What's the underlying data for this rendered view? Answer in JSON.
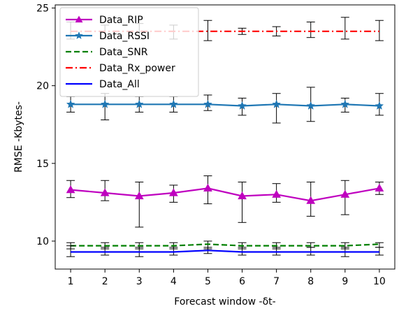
{
  "chart_data": {
    "type": "line",
    "xlabel": "Forecast window -δt-",
    "ylabel": "RMSE -Kbytes-",
    "xlim": [
      0.55,
      10.45
    ],
    "ylim": [
      8.2,
      25.2
    ],
    "xticks": [
      1,
      2,
      3,
      4,
      5,
      6,
      7,
      8,
      9,
      10
    ],
    "yticks": [
      10,
      15,
      20,
      25
    ],
    "grid": false,
    "legend_position": "top-left",
    "x": [
      1,
      2,
      3,
      4,
      5,
      6,
      7,
      8,
      9,
      10
    ],
    "series": [
      {
        "name": "Data_RIP",
        "color": "#bf00bf",
        "marker": "triangle",
        "linestyle": "solid",
        "values": [
          13.3,
          13.1,
          12.9,
          13.1,
          13.4,
          12.9,
          13.0,
          12.6,
          13.0,
          13.4
        ],
        "err_low": [
          12.8,
          12.6,
          10.9,
          12.5,
          12.4,
          11.2,
          12.5,
          11.6,
          11.7,
          13.0
        ],
        "err_high": [
          13.9,
          13.9,
          13.8,
          13.6,
          14.2,
          13.8,
          13.7,
          13.8,
          13.9,
          13.8
        ]
      },
      {
        "name": "Data_RSSI",
        "color": "#1f77b4",
        "marker": "star",
        "linestyle": "solid",
        "values": [
          18.8,
          18.8,
          18.8,
          18.8,
          18.8,
          18.7,
          18.8,
          18.7,
          18.8,
          18.7
        ],
        "err_low": [
          18.3,
          17.8,
          18.3,
          18.3,
          18.4,
          18.1,
          17.6,
          17.7,
          18.3,
          18.1
        ],
        "err_high": [
          19.3,
          19.5,
          19.3,
          19.3,
          19.4,
          19.2,
          19.5,
          19.9,
          19.2,
          19.5
        ]
      },
      {
        "name": "Data_SNR",
        "color": "#008000",
        "marker": "none",
        "linestyle": "dashed",
        "values": [
          9.7,
          9.7,
          9.7,
          9.7,
          9.8,
          9.7,
          9.7,
          9.7,
          9.7,
          9.8
        ],
        "err_low": [
          9.5,
          9.5,
          9.5,
          9.5,
          9.5,
          9.5,
          9.5,
          9.6,
          9.5,
          9.6
        ],
        "err_high": [
          9.9,
          9.9,
          9.9,
          9.9,
          10.0,
          9.9,
          9.9,
          9.9,
          9.9,
          9.9
        ]
      },
      {
        "name": "Data_Rx_power",
        "color": "#ff0000",
        "marker": "none",
        "linestyle": "dashdot",
        "values": [
          23.5,
          23.5,
          23.5,
          23.5,
          23.5,
          23.5,
          23.5,
          23.5,
          23.5,
          23.5
        ],
        "err_low": [
          23.0,
          23.0,
          23.0,
          23.0,
          22.9,
          23.3,
          23.2,
          23.1,
          23.0,
          22.9
        ],
        "err_high": [
          24.1,
          23.9,
          24.0,
          23.9,
          24.2,
          23.7,
          23.8,
          24.1,
          24.4,
          24.2
        ]
      },
      {
        "name": "Data_All",
        "color": "#0000ff",
        "marker": "none",
        "linestyle": "solid",
        "values": [
          9.3,
          9.3,
          9.3,
          9.3,
          9.4,
          9.3,
          9.3,
          9.3,
          9.3,
          9.3
        ],
        "err_low": [
          9.0,
          9.1,
          9.0,
          9.1,
          9.2,
          9.1,
          9.1,
          9.1,
          9.0,
          9.1
        ],
        "err_high": [
          9.7,
          9.6,
          9.6,
          9.6,
          9.6,
          9.6,
          9.6,
          9.6,
          9.6,
          9.6
        ]
      }
    ]
  }
}
